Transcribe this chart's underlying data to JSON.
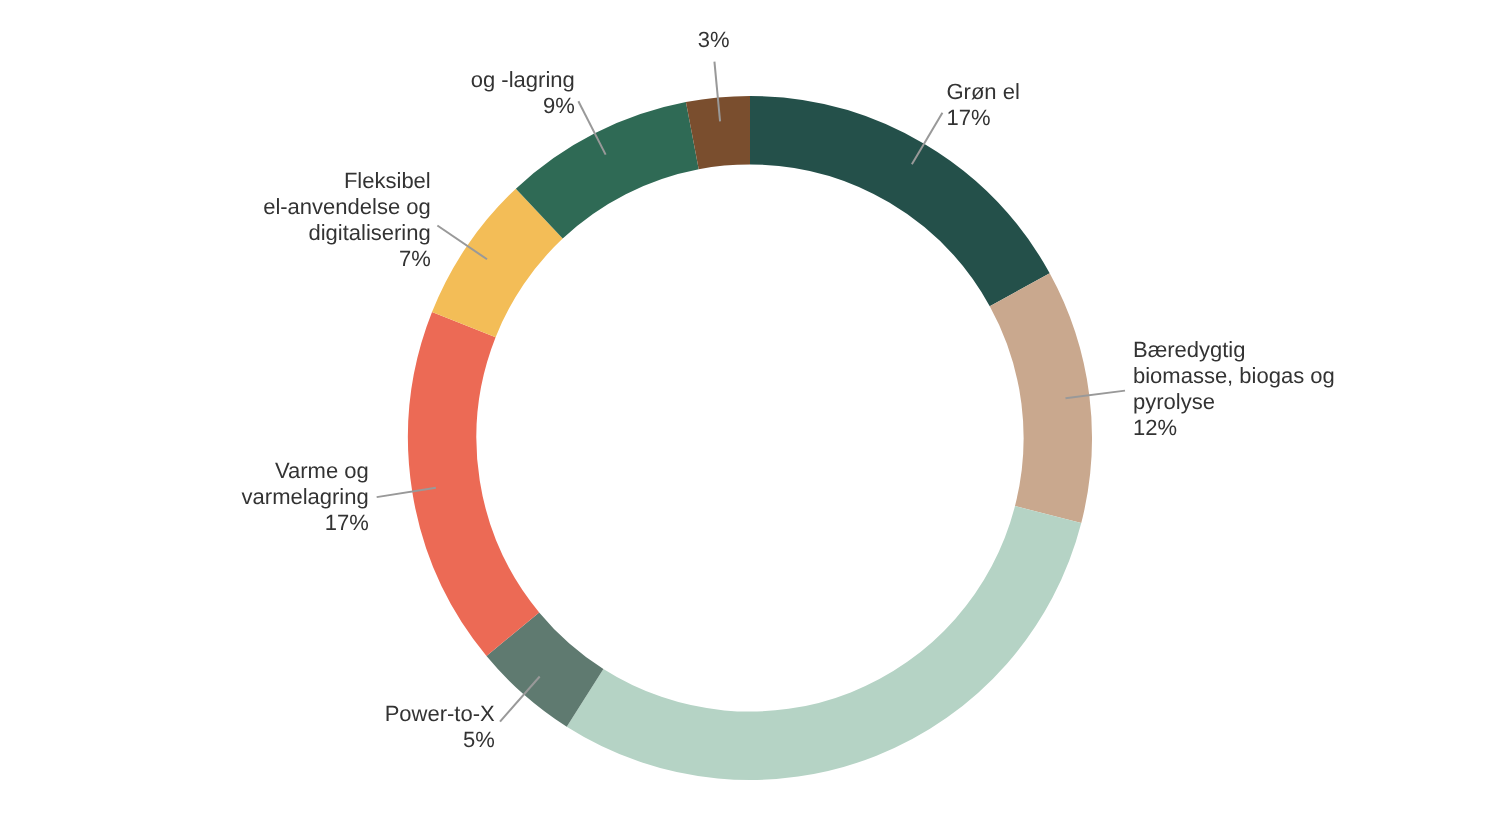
{
  "chart_data": {
    "type": "donut",
    "categories": [
      "Grøn el",
      "Bæredygtig biomasse, biogas og pyrolyse",
      null,
      "Power-to-X",
      "Varme og varmelagring",
      "Fleksibel el-anvendelse og digitalisering",
      "og -lagring",
      null
    ],
    "values": [
      17,
      12,
      30,
      5,
      17,
      7,
      9,
      3
    ],
    "colors": [
      "#24504a",
      "#c9a88e",
      "#b5d3c5",
      "#5f7a70",
      "#ec6a55",
      "#f3bd57",
      "#2f6a55",
      "#7a4e2e"
    ],
    "value_labels": [
      "17%",
      "12%",
      null,
      "5%",
      "17%",
      "7%",
      "9%",
      "3%"
    ],
    "legend": false
  }
}
